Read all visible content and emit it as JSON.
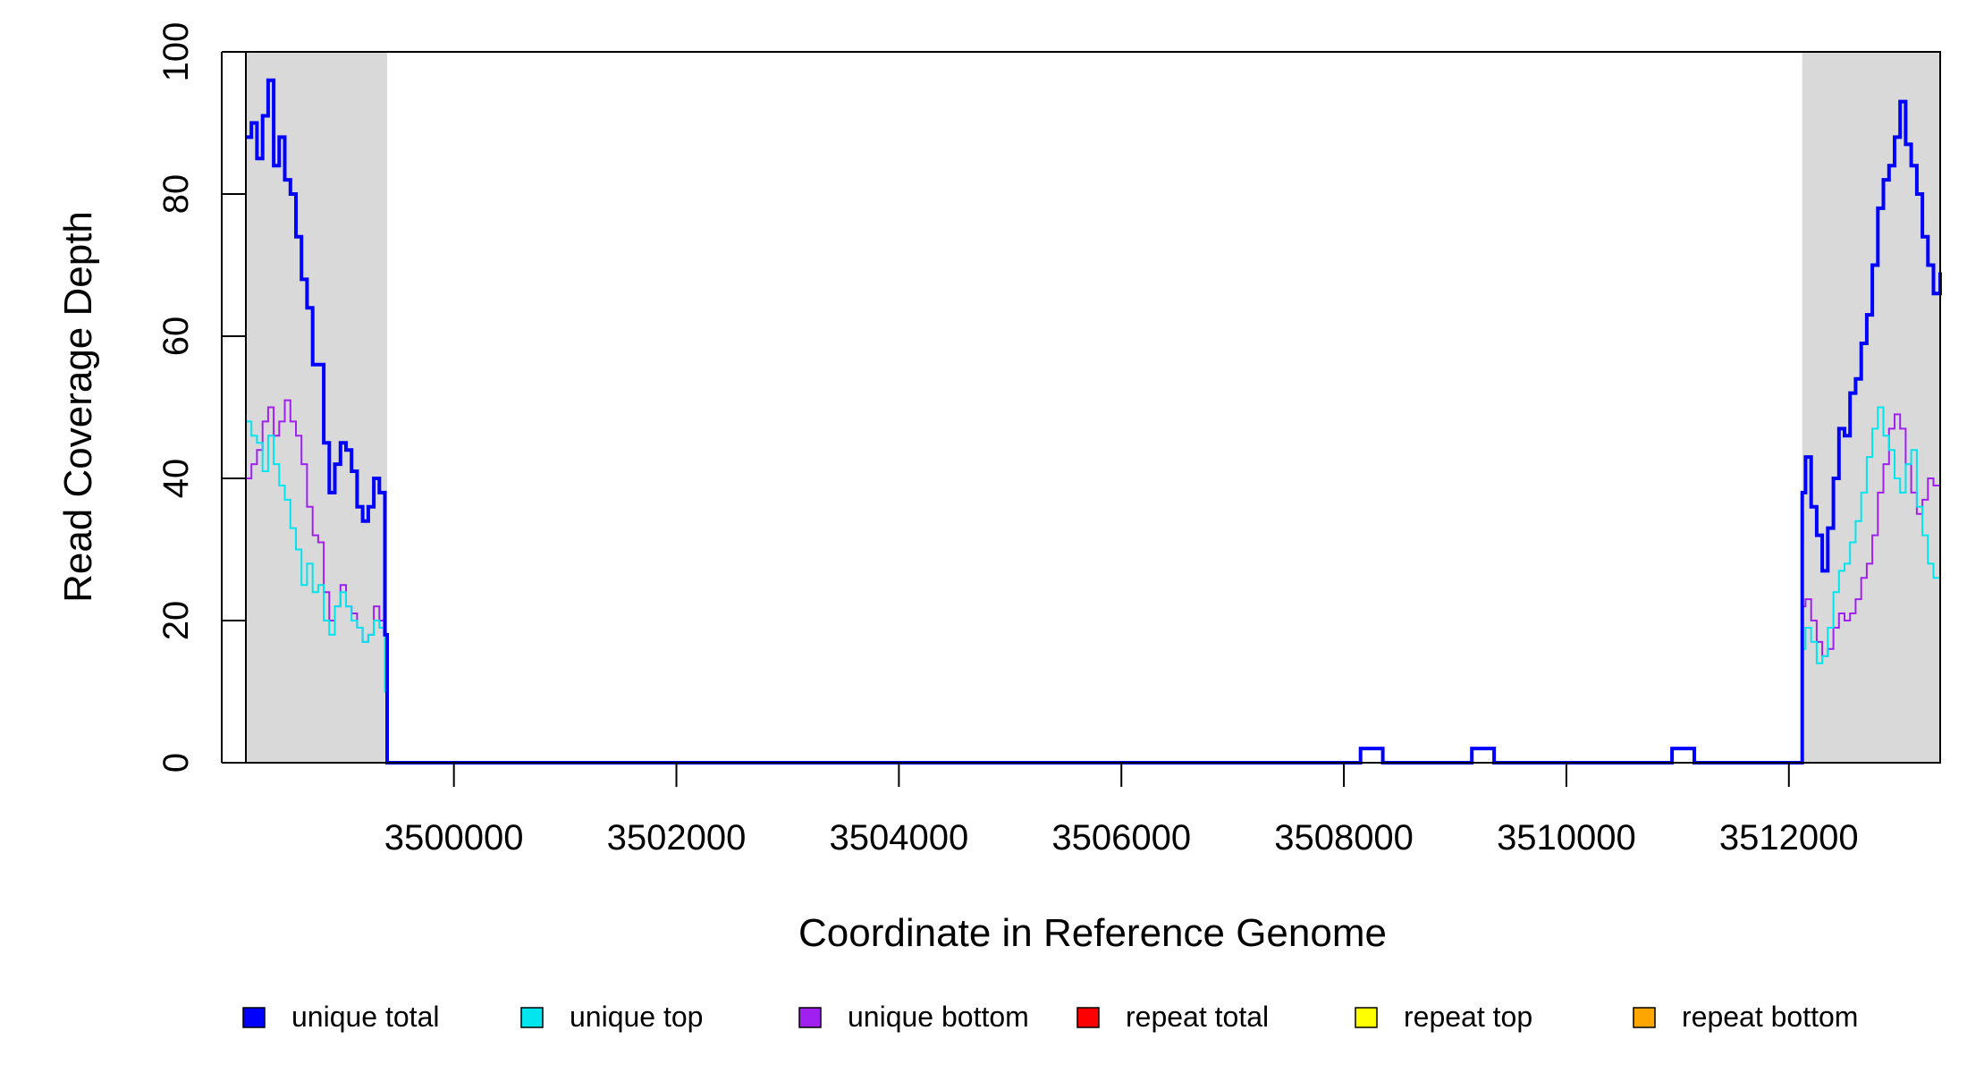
{
  "chart_data": {
    "type": "line",
    "title": "",
    "xlabel": "Coordinate in Reference Genome",
    "ylabel": "Read Coverage Depth",
    "xlim": [
      3498130,
      3513360
    ],
    "ylim": [
      0,
      100
    ],
    "x_ticks": [
      3500000,
      3502000,
      3504000,
      3506000,
      3508000,
      3510000,
      3512000
    ],
    "x_tick_labels": [
      "3500000",
      "3502000",
      "3504000",
      "3506000",
      "3508000",
      "3510000",
      "3512000"
    ],
    "y_ticks": [
      0,
      20,
      40,
      60,
      80,
      100
    ],
    "y_tick_labels": [
      "0",
      "20",
      "40",
      "60",
      "80",
      "100"
    ],
    "grid": false,
    "legend_position": "bottom",
    "shaded_regions": [
      {
        "x0": 3498130,
        "x1": 3499400,
        "color": "#d9d9d9"
      },
      {
        "x0": 3512120,
        "x1": 3513360,
        "color": "#d9d9d9"
      }
    ],
    "series": [
      {
        "name": "unique total",
        "color": "#0000ff",
        "stroke": 4,
        "x": [
          3498130,
          3498180,
          3498230,
          3498280,
          3498330,
          3498380,
          3498430,
          3498480,
          3498530,
          3498580,
          3498630,
          3498680,
          3498730,
          3498780,
          3498830,
          3498880,
          3498930,
          3498980,
          3499030,
          3499080,
          3499130,
          3499180,
          3499230,
          3499280,
          3499330,
          3499380,
          3499400,
          3499420,
          3508150,
          3508350,
          3509150,
          3509350,
          3510950,
          3511150,
          3512120,
          3512150,
          3512200,
          3512250,
          3512300,
          3512350,
          3512400,
          3512450,
          3512500,
          3512550,
          3512600,
          3512650,
          3512700,
          3512750,
          3512800,
          3512850,
          3512900,
          3512950,
          3513000,
          3513050,
          3513100,
          3513150,
          3513200,
          3513250,
          3513300,
          3513360
        ],
        "y": [
          88,
          90,
          85,
          91,
          96,
          84,
          88,
          82,
          80,
          74,
          68,
          64,
          56,
          56,
          45,
          38,
          42,
          45,
          44,
          41,
          36,
          34,
          36,
          40,
          38,
          18,
          0,
          0,
          2,
          0,
          2,
          0,
          2,
          0,
          38,
          43,
          36,
          32,
          27,
          33,
          40,
          47,
          46,
          52,
          54,
          59,
          63,
          70,
          78,
          82,
          84,
          88,
          93,
          87,
          84,
          80,
          74,
          70,
          66,
          69
        ]
      },
      {
        "name": "unique top",
        "color": "#00e5ee",
        "stroke": 2,
        "x": [
          3498130,
          3498180,
          3498230,
          3498280,
          3498330,
          3498380,
          3498430,
          3498480,
          3498530,
          3498580,
          3498630,
          3498680,
          3498730,
          3498780,
          3498830,
          3498880,
          3498930,
          3498980,
          3499030,
          3499080,
          3499130,
          3499180,
          3499230,
          3499280,
          3499330,
          3499380,
          3499400,
          3499420,
          3508150,
          3508350,
          3509150,
          3509350,
          3510950,
          3511150,
          3512120,
          3512150,
          3512200,
          3512250,
          3512300,
          3512350,
          3512400,
          3512450,
          3512500,
          3512550,
          3512600,
          3512650,
          3512700,
          3512750,
          3512800,
          3512850,
          3512900,
          3512950,
          3513000,
          3513050,
          3513100,
          3513150,
          3513200,
          3513250,
          3513300,
          3513360
        ],
        "y": [
          48,
          46,
          45,
          41,
          46,
          42,
          39,
          37,
          33,
          30,
          25,
          28,
          24,
          25,
          20,
          18,
          22,
          24,
          22,
          20,
          19,
          17,
          18,
          20,
          19,
          10,
          0,
          0,
          2,
          0,
          2,
          0,
          2,
          0,
          16,
          19,
          17,
          14,
          15,
          19,
          24,
          27,
          28,
          31,
          34,
          38,
          43,
          47,
          50,
          46,
          44,
          40,
          38,
          42,
          44,
          36,
          32,
          28,
          26,
          30
        ]
      },
      {
        "name": "unique bottom",
        "color": "#a020f0",
        "stroke": 2,
        "x": [
          3498130,
          3498180,
          3498230,
          3498280,
          3498330,
          3498380,
          3498430,
          3498480,
          3498530,
          3498580,
          3498630,
          3498680,
          3498730,
          3498780,
          3498830,
          3498880,
          3498930,
          3498980,
          3499030,
          3499080,
          3499130,
          3499180,
          3499230,
          3499280,
          3499330,
          3499380,
          3499400,
          3499420,
          3508150,
          3508350,
          3509150,
          3509350,
          3510950,
          3511150,
          3512120,
          3512150,
          3512200,
          3512250,
          3512300,
          3512350,
          3512400,
          3512450,
          3512500,
          3512550,
          3512600,
          3512650,
          3512700,
          3512750,
          3512800,
          3512850,
          3512900,
          3512950,
          3513000,
          3513050,
          3513100,
          3513150,
          3513200,
          3513250,
          3513300,
          3513360
        ],
        "y": [
          40,
          42,
          44,
          48,
          50,
          46,
          48,
          51,
          48,
          46,
          42,
          36,
          32,
          31,
          24,
          20,
          22,
          25,
          22,
          21,
          19,
          17,
          18,
          22,
          20,
          10,
          0,
          0,
          2,
          0,
          2,
          0,
          2,
          0,
          22,
          23,
          20,
          17,
          15,
          16,
          19,
          21,
          20,
          21,
          23,
          26,
          28,
          32,
          38,
          42,
          47,
          49,
          47,
          42,
          38,
          35,
          37,
          40,
          39,
          37
        ]
      },
      {
        "name": "repeat total",
        "color": "#ff0000",
        "stroke": 2,
        "x": [
          3498130,
          3513360
        ],
        "y": [
          0,
          0
        ]
      },
      {
        "name": "repeat top",
        "color": "#ffff00",
        "stroke": 2,
        "x": [
          3498130,
          3513360
        ],
        "y": [
          0,
          0
        ]
      },
      {
        "name": "repeat bottom",
        "color": "#ffa500",
        "stroke": 2,
        "x": [
          3498130,
          3513360
        ],
        "y": [
          0,
          0
        ]
      }
    ]
  }
}
